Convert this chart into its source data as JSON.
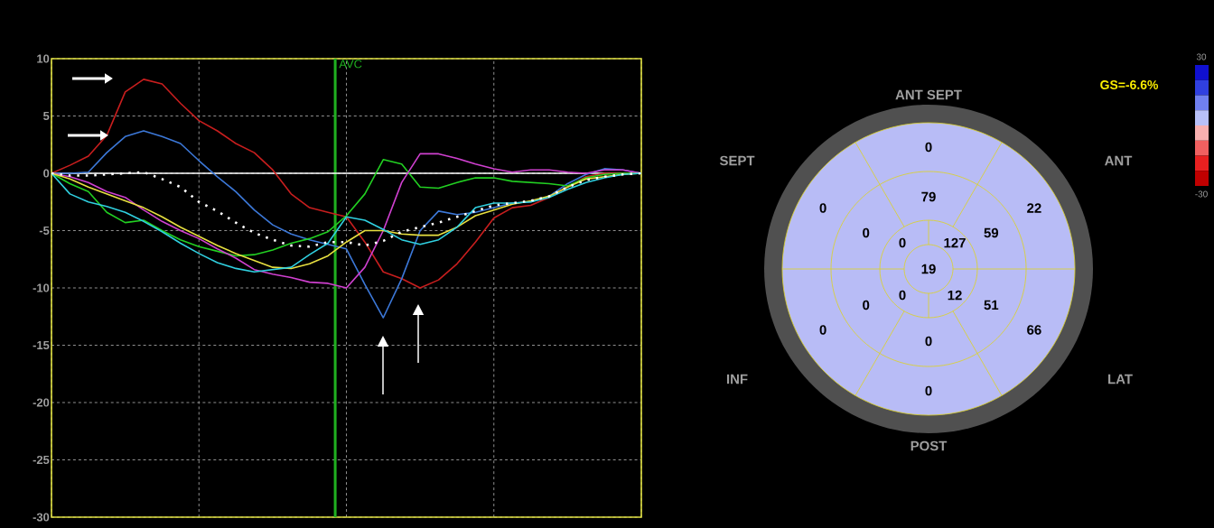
{
  "chart_data": [
    {
      "type": "line",
      "categories": [
        null,
        null,
        null,
        null,
        null,
        null,
        null,
        null,
        null,
        null,
        null,
        null,
        null,
        null,
        null,
        null,
        null,
        null,
        null,
        null,
        null,
        null,
        null,
        null,
        null,
        null,
        null,
        null,
        null,
        null,
        null,
        null,
        null
      ],
      "series": [
        {
          "color": "#c81e1e",
          "values": [
            0,
            0.7,
            1.5,
            3.3,
            7.1,
            8.2,
            7.8,
            6.1,
            4.6,
            3.7,
            2.6,
            1.8,
            0.3,
            -1.8,
            -3.0,
            -3.4,
            -3.8,
            -6.0,
            -8.6,
            -9.2,
            -10.0,
            -9.3,
            -7.9,
            -6.0,
            -3.9,
            -3.0,
            -2.8,
            -2.1,
            -1.2,
            -0.3,
            0,
            0,
            0
          ]
        },
        {
          "color": "#3c78d8",
          "values": [
            0,
            0,
            0.1,
            1.8,
            3.2,
            3.7,
            3.2,
            2.6,
            1.1,
            -0.3,
            -1.6,
            -3.2,
            -4.5,
            -5.3,
            -5.8,
            -6.2,
            -6.6,
            -9.7,
            -12.6,
            -9.2,
            -5.0,
            -3.3,
            -3.6,
            -3.4,
            -3.0,
            -2.6,
            -2.5,
            -2.0,
            -0.9,
            -0.1,
            0.4,
            0.3,
            0
          ]
        },
        {
          "color": "#22d022",
          "values": [
            0,
            -0.9,
            -1.6,
            -3.4,
            -4.3,
            -4.1,
            -5.0,
            -5.8,
            -6.4,
            -6.8,
            -7.2,
            -7.1,
            -6.7,
            -6.1,
            -5.7,
            -5.1,
            -3.7,
            -1.8,
            1.2,
            0.8,
            -1.2,
            -1.3,
            -0.8,
            -0.4,
            -0.4,
            -0.7,
            -0.8,
            -0.9,
            -1.1,
            -0.4,
            -0.1,
            0,
            0
          ]
        },
        {
          "color": "#d040d0",
          "values": [
            0,
            -0.3,
            -0.8,
            -1.6,
            -2.1,
            -3.2,
            -4.2,
            -5.0,
            -5.7,
            -6.6,
            -7.4,
            -8.4,
            -8.8,
            -9.1,
            -9.5,
            -9.6,
            -10.0,
            -8.2,
            -5.0,
            -0.8,
            1.7,
            1.7,
            1.3,
            0.8,
            0.4,
            0.1,
            0.3,
            0.3,
            0.1,
            0,
            0.3,
            0.3,
            0
          ]
        },
        {
          "color": "#e8e040",
          "values": [
            0,
            -0.5,
            -1.2,
            -1.8,
            -2.4,
            -3.0,
            -3.8,
            -4.7,
            -5.5,
            -6.3,
            -7.0,
            -7.6,
            -8.2,
            -8.3,
            -7.9,
            -7.2,
            -6.0,
            -5.0,
            -5.0,
            -5.3,
            -5.4,
            -5.4,
            -4.7,
            -3.7,
            -3.2,
            -2.7,
            -2.4,
            -2.0,
            -1.2,
            -0.5,
            -0.3,
            -0.1,
            0
          ]
        },
        {
          "color": "#30d0e0",
          "values": [
            0,
            -1.8,
            -2.5,
            -2.9,
            -3.4,
            -4.2,
            -5.1,
            -6.1,
            -7.0,
            -7.8,
            -8.3,
            -8.6,
            -8.4,
            -8.2,
            -7.1,
            -6.1,
            -3.8,
            -4.1,
            -4.9,
            -5.8,
            -6.2,
            -5.8,
            -4.7,
            -3.0,
            -2.6,
            -2.6,
            -2.5,
            -2.1,
            -1.4,
            -0.8,
            -0.4,
            -0.1,
            0
          ]
        },
        {
          "color": "#ffffff",
          "line_style": "dotted",
          "values": [
            0,
            -0.2,
            -0.2,
            -0.1,
            0,
            0.1,
            -0.5,
            -1.2,
            -2.5,
            -3.3,
            -4.3,
            -5.2,
            -5.8,
            -6.3,
            -6.4,
            -6.0,
            -6.0,
            -6.3,
            -5.9,
            -5.1,
            -4.7,
            -4.3,
            -3.8,
            -3.3,
            -2.8,
            -2.6,
            -2.4,
            -2.0,
            -1.2,
            -0.6,
            -0.3,
            -0.1,
            0
          ]
        }
      ],
      "ylim": [
        -30,
        10
      ],
      "yticks": [
        -30,
        -25,
        -20,
        -15,
        -10,
        -5,
        0,
        5,
        10
      ],
      "tick_labels": "y",
      "grid": true,
      "ref_lines": [
        {
          "axis": "y",
          "value": 0,
          "color": "#ffffff"
        }
      ],
      "annotations": [
        "AVC"
      ]
    },
    {
      "type": "other",
      "title": "GS=-6.6%",
      "annotations": [
        "ANT SEPT",
        "SEPT",
        "ANT",
        "INF",
        "LAT",
        "POST",
        "0",
        "22",
        "66",
        "0",
        "0",
        "0",
        "79",
        "59",
        "51",
        "0",
        "0",
        "0",
        "0",
        "127",
        "12",
        "0",
        "19",
        "30",
        "-30"
      ]
    }
  ]
}
